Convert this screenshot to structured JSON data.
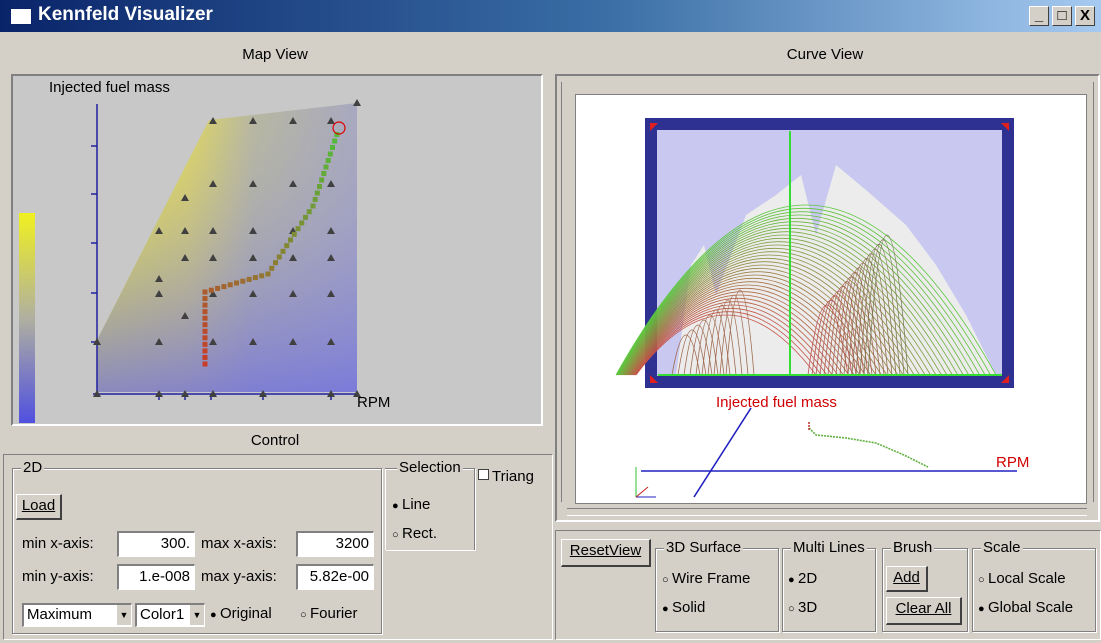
{
  "window": {
    "title": "Kennfeld Visualizer",
    "minimize": "_",
    "maximize": "□",
    "close": "X"
  },
  "panels": {
    "map_view": "Map View",
    "curve_view": "Curve View",
    "control": "Control"
  },
  "map": {
    "y_axis_label": "Injected fuel mass",
    "x_axis_label": "RPM"
  },
  "curve": {
    "y_axis_label": "Injected fuel mass",
    "x_axis_label": "RPM"
  },
  "control": {
    "group_2d": "2D",
    "load": "Load",
    "min_x_label": "min x-axis:",
    "min_x_value": "300.",
    "max_x_label": "max x-axis:",
    "max_x_value": "3200",
    "min_y_label": "min y-axis:",
    "min_y_value": "1.e-008",
    "max_y_label": "max y-axis:",
    "max_y_value": "5.82e-00",
    "mode_select": "Maximum",
    "color_select": "Color1",
    "original": "Original",
    "fourier": "Fourier",
    "selection_group": "Selection",
    "line": "Line",
    "rect": "Rect.",
    "triang": "Triang"
  },
  "bottom": {
    "reset_view": "ResetView",
    "surface_group": "3D Surface",
    "wire_frame": "Wire Frame",
    "solid": "Solid",
    "multi_group": "Multi Lines",
    "m2d": "2D",
    "m3d": "3D",
    "brush_group": "Brush",
    "add": "Add",
    "clear_all": "Clear All",
    "scale_group": "Scale",
    "local_scale": "Local Scale",
    "global_scale": "Global Scale"
  },
  "colors": {
    "title_start": "#0a246a",
    "title_end": "#a6caf0",
    "frame": "#2e3192",
    "plot_bg": "#c8c8f0",
    "axis_blue": "#2020c0",
    "label_red": "#d00000"
  }
}
